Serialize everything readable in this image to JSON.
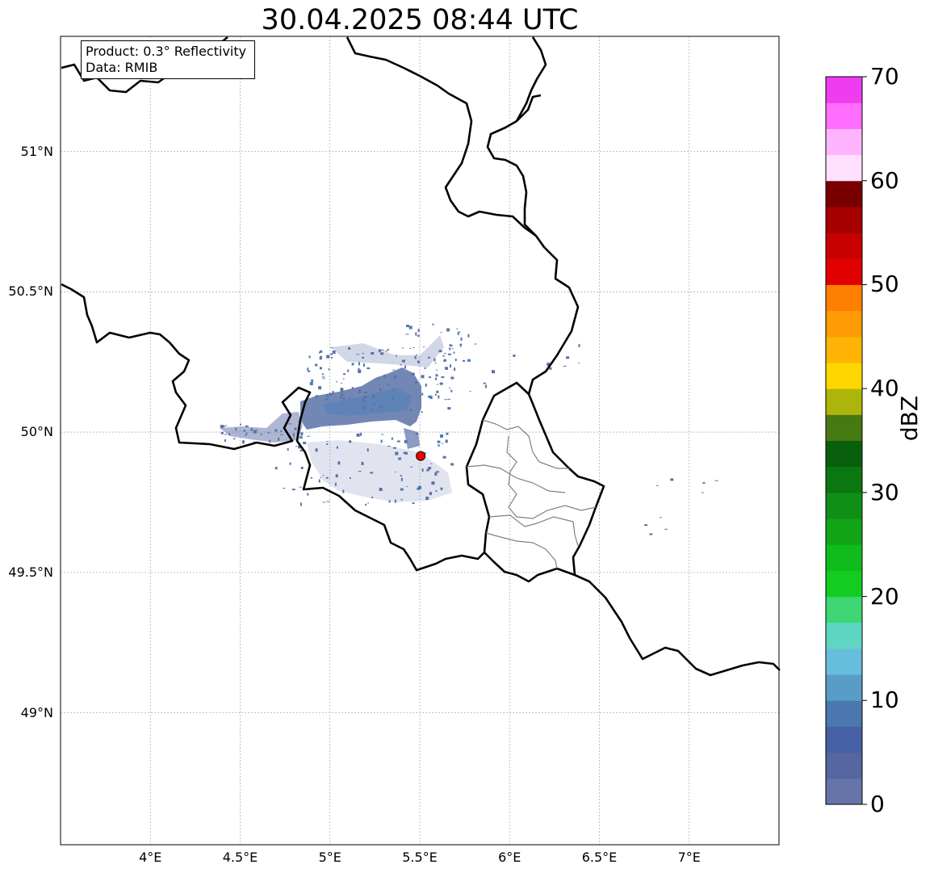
{
  "title": "30.04.2025 08:44 UTC",
  "info_box": {
    "product_line": "Product: 0.3° Reflectivity",
    "data_line": "Data: RMIB"
  },
  "axes": {
    "lon_ticks": [
      {
        "value": 4.0,
        "label": "4°E"
      },
      {
        "value": 4.5,
        "label": "4.5°E"
      },
      {
        "value": 5.0,
        "label": "5°E"
      },
      {
        "value": 5.5,
        "label": "5.5°E"
      },
      {
        "value": 6.0,
        "label": "6°E"
      },
      {
        "value": 6.5,
        "label": "6.5°E"
      },
      {
        "value": 7.0,
        "label": "7°E"
      }
    ],
    "lat_ticks": [
      {
        "value": 51.0,
        "label": "51°N"
      },
      {
        "value": 50.5,
        "label": "50.5°N"
      },
      {
        "value": 50.0,
        "label": "50°N"
      },
      {
        "value": 49.5,
        "label": "49.5°N"
      },
      {
        "value": 49.0,
        "label": "49°N"
      }
    ],
    "lon_range": [
      3.5,
      7.5
    ],
    "lat_range": [
      48.53,
      51.41
    ],
    "gridlines": true
  },
  "radar_site": {
    "lon": 5.505,
    "lat": 49.915,
    "color": "#ff0000"
  },
  "colorbar": {
    "label": "dBZ",
    "min": 0,
    "max": 70,
    "tick_labels": [
      "0",
      "10",
      "20",
      "30",
      "40",
      "50",
      "60",
      "70"
    ],
    "colors": [
      "#6674aa",
      "#5566a0",
      "#4660a5",
      "#4b78b0",
      "#5a9cc8",
      "#66bedc",
      "#5fd6c4",
      "#3dd673",
      "#14cc1f",
      "#10bb1c",
      "#10a416",
      "#0f8f15",
      "#0b7711",
      "#095f0c",
      "#477912",
      "#adb50a",
      "#ffd700",
      "#ffb406",
      "#ff9b05",
      "#ff7f00",
      "#e10000",
      "#c80000",
      "#a60000",
      "#7a0000",
      "#ffe0ff",
      "#ffb4ff",
      "#ff6eff",
      "#f03cf0"
    ]
  }
}
